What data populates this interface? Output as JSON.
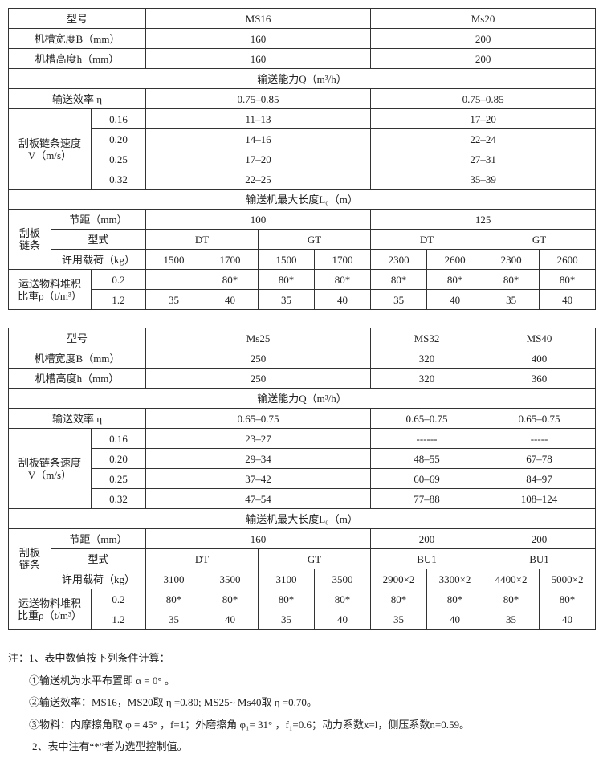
{
  "tables": [
    {
      "model_label": "型号",
      "models": [
        "MS16",
        "Ms20"
      ],
      "width_label": "机槽宽度B（mm）",
      "widths": [
        "160",
        "200"
      ],
      "height_label": "机槽高度h（mm）",
      "heights": [
        "160",
        "200"
      ],
      "capacity_title": "输送能力Q（m³/h）",
      "efficiency_label": "输送效率 η",
      "efficiency": [
        "0.75–0.85",
        "0.75–0.85"
      ],
      "speed_label": [
        "刮板链条速度",
        "V（m/s）"
      ],
      "speeds": [
        {
          "v": "0.16",
          "q": [
            "11–13",
            "17–20"
          ]
        },
        {
          "v": "0.20",
          "q": [
            "14–16",
            "22–24"
          ]
        },
        {
          "v": "0.25",
          "q": [
            "17–20",
            "27–31"
          ]
        },
        {
          "v": "0.32",
          "q": [
            "22–25",
            "35–39"
          ]
        }
      ],
      "length_title": "输送机最大长度L₀（m）",
      "chain_label": [
        "刮板",
        "链条"
      ],
      "pitch_label": "节距（mm）",
      "pitches": [
        "100",
        "125"
      ],
      "type_label": "型式",
      "types": [
        "DT",
        "GT",
        "DT",
        "GT"
      ],
      "load_label": "许用载荷（kg）",
      "loads": [
        "1500",
        "1700",
        "1500",
        "1700",
        "2300",
        "2600",
        "2300",
        "2600"
      ],
      "density_label": [
        "运送物料堆积",
        "比重ρ（t/m³）"
      ],
      "densities": [
        {
          "rho": "0.2",
          "values": [
            "",
            "80*",
            "80*",
            "80*",
            "80*",
            "80*",
            "80*",
            "80*"
          ]
        },
        {
          "rho": "1.2",
          "values": [
            "35",
            "40",
            "35",
            "40",
            "35",
            "40",
            "35",
            "40"
          ]
        }
      ]
    },
    {
      "model_label": "型号",
      "models": [
        "Ms25",
        "MS32",
        "MS40"
      ],
      "width_label": "机槽宽度B（mm）",
      "widths": [
        "250",
        "320",
        "400"
      ],
      "height_label": "机槽高度h（mm）",
      "heights": [
        "250",
        "320",
        "360"
      ],
      "capacity_title": "输送能力Q（m³/h）",
      "efficiency_label": "输送效率 η",
      "efficiency": [
        "0.65–0.75",
        "0.65–0.75",
        "0.65–0.75"
      ],
      "speed_label": [
        "刮板链条速度",
        "V（m/s）"
      ],
      "speeds": [
        {
          "v": "0.16",
          "q": [
            "23–27",
            "------",
            "-----"
          ]
        },
        {
          "v": "0.20",
          "q": [
            "29–34",
            "48–55",
            "67–78"
          ]
        },
        {
          "v": "0.25",
          "q": [
            "37–42",
            "60–69",
            "84–97"
          ]
        },
        {
          "v": "0.32",
          "q": [
            "47–54",
            "77–88",
            "108–124"
          ]
        }
      ],
      "length_title": "输送机最大长度L₀（m）",
      "chain_label": [
        "刮板",
        "链条"
      ],
      "pitch_label": "节距（mm）",
      "pitches": [
        "160",
        "200",
        "200"
      ],
      "type_label": "型式",
      "types": [
        "DT",
        "GT",
        "BU1",
        "BU1"
      ],
      "load_label": "许用载荷（kg）",
      "loads": [
        "3100",
        "3500",
        "3100",
        "3500",
        "2900×2",
        "3300×2",
        "4400×2",
        "5000×2"
      ],
      "density_label": [
        "运送物料堆积",
        "比重ρ（t/m³）"
      ],
      "densities": [
        {
          "rho": "0.2",
          "values": [
            "80*",
            "80*",
            "80*",
            "80*",
            "80*",
            "80*",
            "80*",
            "80*"
          ]
        },
        {
          "rho": "1.2",
          "values": [
            "35",
            "40",
            "35",
            "40",
            "35",
            "40",
            "35",
            "40"
          ]
        }
      ]
    }
  ],
  "notes": {
    "n1": "注：1、表中数值按下列条件计算：",
    "n1a": "①输送机为水平布置即 α = 0°  。",
    "n1b": "②输送效率：MS16，MS20取 η =0.80; MS25~ Ms40取 η =0.70。",
    "n1c": "③物料：内摩擦角取 φ = 45° ，f=1；外磨擦角 φ₁= 31° ，f₁=0.6；动力系数x=l，侧压系数n=0.59。",
    "n2": "2、表中注有“*”者为选型控制值。"
  }
}
